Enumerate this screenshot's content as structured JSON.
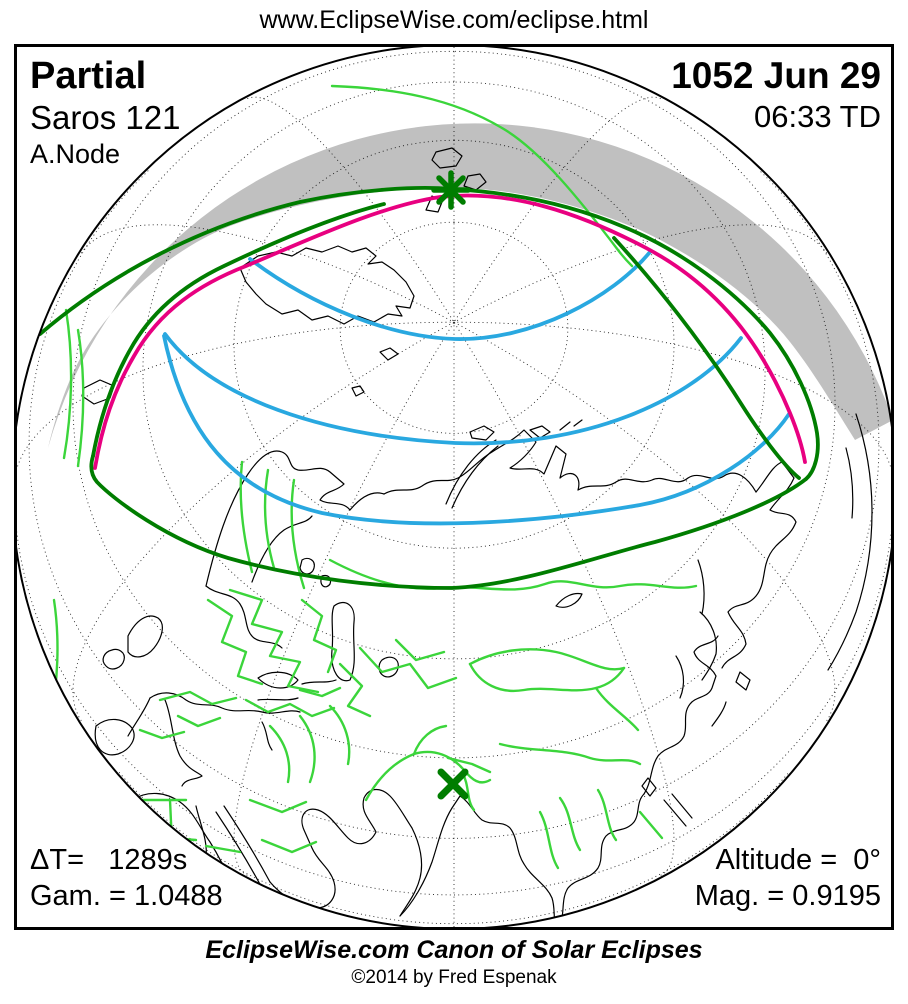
{
  "header": {
    "url": "www.EclipseWise.com/eclipse.html"
  },
  "map": {
    "top_left": {
      "eclipse_type": "Partial",
      "saros": "Saros 121",
      "node": "A.Node"
    },
    "top_right": {
      "date": "1052 Jun 29",
      "time": "06:33 TD"
    },
    "bottom_left": {
      "delta_t": "ΔT=   1289s",
      "gamma": "Gam. = 1.0488"
    },
    "bottom_right": {
      "altitude": "Altitude =  0°",
      "magnitude": "Mag. = 0.9195"
    },
    "markers": {
      "greatest_eclipse": "greatest-eclipse-asterisk",
      "subsolar_point": "subsolar-x-cross"
    },
    "colors": {
      "penumbral_limit_green": "#007d00",
      "country_border_green": "#3bd53b",
      "max_eclipse_magenta": "#e80080",
      "rise_set_blue": "#29a8e0",
      "night_shading_gray": "#c0c0c0",
      "coast_black": "#000000"
    }
  },
  "footer": {
    "title": "EclipseWise.com Canon of Solar Eclipses",
    "copyright": "©2014 by Fred Espenak"
  }
}
